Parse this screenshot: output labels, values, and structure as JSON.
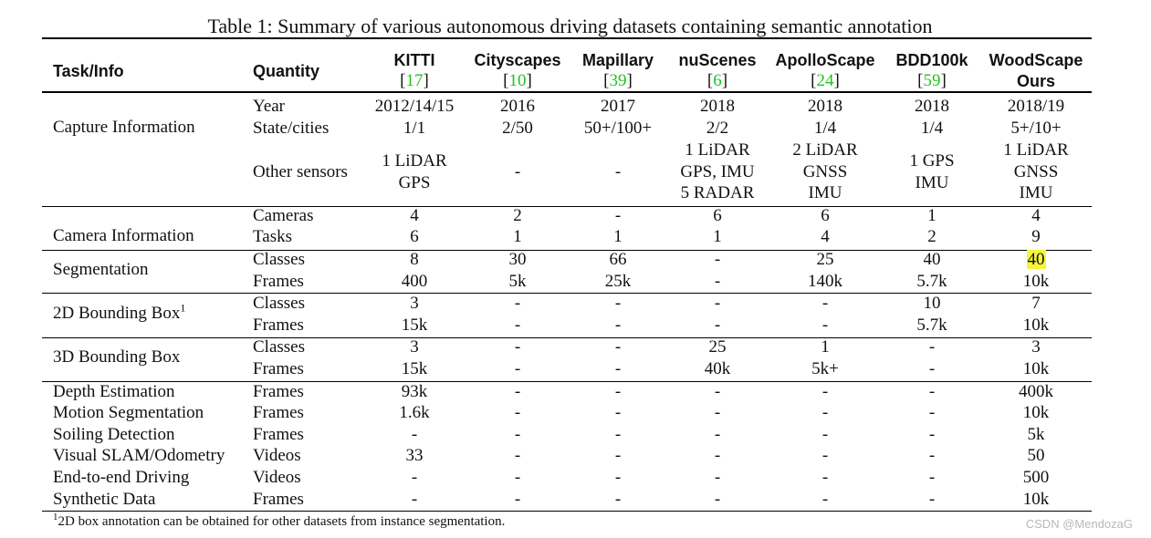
{
  "caption": "Table 1: Summary of various autonomous driving datasets containing semantic annotation",
  "header": {
    "task_label": "Task/Info",
    "quantity_label": "Quantity",
    "datasets": [
      {
        "name": "KITTI",
        "sub": "17",
        "sub_is_ref": true
      },
      {
        "name": "Cityscapes",
        "sub": "10",
        "sub_is_ref": true
      },
      {
        "name": "Mapillary",
        "sub": "39",
        "sub_is_ref": true
      },
      {
        "name": "nuScenes",
        "sub": "6",
        "sub_is_ref": true
      },
      {
        "name": "ApolloScape",
        "sub": "24",
        "sub_is_ref": true
      },
      {
        "name": "BDD100k",
        "sub": "59",
        "sub_is_ref": true
      },
      {
        "name": "WoodScape",
        "sub": "Ours",
        "sub_is_ref": false
      }
    ]
  },
  "groups": [
    {
      "task": "Capture Information",
      "rows": [
        {
          "quantity": "Year",
          "values": [
            "2012/14/15",
            "2016",
            "2017",
            "2018",
            "2018",
            "2018",
            "2018/19"
          ]
        },
        {
          "quantity": "State/cities",
          "values": [
            "1/1",
            "2/50",
            "50+/100+",
            "2/2",
            "1/4",
            "1/4",
            "5+/10+"
          ]
        },
        {
          "quantity": "Other sensors",
          "values": [
            "1 LiDAR\nGPS",
            "-",
            "-",
            "1 LiDAR\nGPS, IMU\n5 RADAR",
            "2 LiDAR\nGNSS\nIMU",
            "1 GPS\nIMU",
            "1 LiDAR\nGNSS\nIMU"
          ]
        }
      ]
    },
    {
      "task": "Camera Information",
      "rows": [
        {
          "quantity": "Cameras",
          "values": [
            "4",
            "2",
            "-",
            "6",
            "6",
            "1",
            "4"
          ]
        },
        {
          "quantity": "Tasks",
          "values": [
            "6",
            "1",
            "1",
            "1",
            "4",
            "2",
            "9"
          ]
        }
      ]
    },
    {
      "task": "Segmentation",
      "rows": [
        {
          "quantity": "Classes",
          "values": [
            "8",
            "30",
            "66",
            "-",
            "25",
            "40",
            "40"
          ],
          "highlight_col": 6
        },
        {
          "quantity": "Frames",
          "values": [
            "400",
            "5k",
            "25k",
            "-",
            "140k",
            "5.7k",
            "10k"
          ]
        }
      ]
    },
    {
      "task": "2D Bounding Box",
      "task_sup": "1",
      "rows": [
        {
          "quantity": "Classes",
          "values": [
            "3",
            "-",
            "-",
            "-",
            "-",
            "10",
            "7"
          ]
        },
        {
          "quantity": "Frames",
          "values": [
            "15k",
            "-",
            "-",
            "-",
            "-",
            "5.7k",
            "10k"
          ]
        }
      ]
    },
    {
      "task": "3D Bounding Box",
      "rows": [
        {
          "quantity": "Classes",
          "values": [
            "3",
            "-",
            "-",
            "25",
            "1",
            "-",
            "3"
          ]
        },
        {
          "quantity": "Frames",
          "values": [
            "15k",
            "-",
            "-",
            "40k",
            "5k+",
            "-",
            "10k"
          ]
        }
      ]
    },
    {
      "single_rows": [
        {
          "task": "Depth Estimation",
          "quantity": "Frames",
          "values": [
            "93k",
            "-",
            "-",
            "-",
            "-",
            "-",
            "400k"
          ]
        },
        {
          "task": "Motion Segmentation",
          "quantity": "Frames",
          "values": [
            "1.6k",
            "-",
            "-",
            "-",
            "-",
            "-",
            "10k"
          ]
        },
        {
          "task": "Soiling Detection",
          "quantity": "Frames",
          "values": [
            "-",
            "-",
            "-",
            "-",
            "-",
            "-",
            "5k"
          ]
        },
        {
          "task": "Visual SLAM/Odometry",
          "quantity": "Videos",
          "values": [
            "33",
            "-",
            "-",
            "-",
            "-",
            "-",
            "50"
          ]
        },
        {
          "task": "End-to-end Driving",
          "quantity": "Videos",
          "values": [
            "-",
            "-",
            "-",
            "-",
            "-",
            "-",
            "500"
          ]
        },
        {
          "task": "Synthetic Data",
          "quantity": "Frames",
          "values": [
            "-",
            "-",
            "-",
            "-",
            "-",
            "-",
            "10k"
          ]
        }
      ]
    }
  ],
  "footnote": {
    "sup": "1",
    "text": "2D box annotation can be obtained for other datasets from instance segmentation."
  },
  "watermark": "CSDN @MendozaG",
  "colors": {
    "reference": "#22c322",
    "highlight": "#f5f53d"
  }
}
